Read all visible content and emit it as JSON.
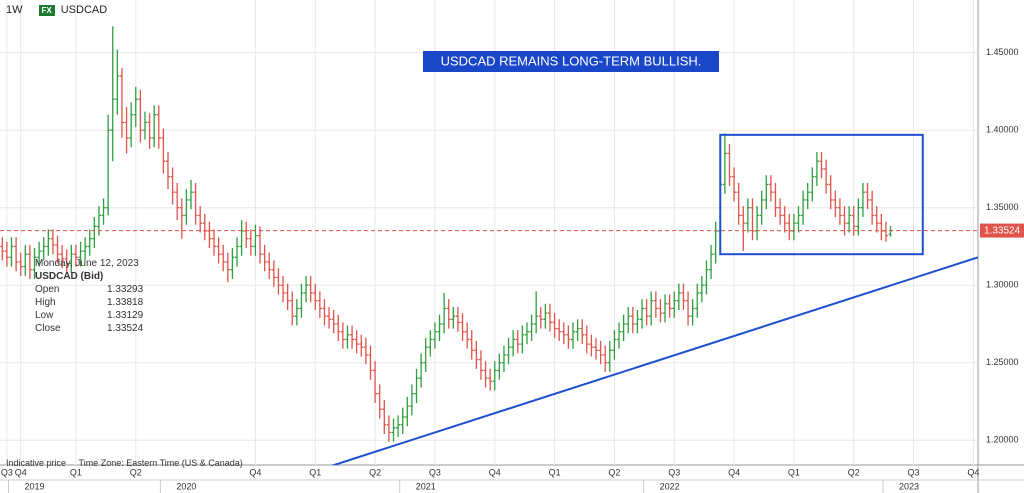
{
  "header": {
    "interval": "1W",
    "badge": "FX",
    "symbol": "USDCAD"
  },
  "footer": {
    "price_type": "Indicative price",
    "time_zone": "Time Zone: Eastern Time (US & Canada)"
  },
  "chart_data": {
    "type": "ohlc",
    "up_color": "#2e9e3e",
    "down_color": "#e0534a",
    "grid": true,
    "xlim": [
      -0.5,
      212
    ],
    "ylim": [
      1.184,
      1.484
    ],
    "yticks": [
      {
        "value": 1.2,
        "label": "1.20000"
      },
      {
        "value": 1.25,
        "label": "1.25000"
      },
      {
        "value": 1.3,
        "label": "1.30000"
      },
      {
        "value": 1.35,
        "label": "1.35000"
      },
      {
        "value": 1.4,
        "label": "1.40000"
      },
      {
        "value": 1.45,
        "label": "1.45000"
      }
    ],
    "xticks": [
      {
        "value": 1,
        "label": "Q3"
      },
      {
        "value": 4,
        "label": "Q4"
      },
      {
        "value": 16,
        "label": "Q1"
      },
      {
        "value": 29,
        "label": "Q2"
      },
      {
        "value": 55,
        "label": "Q4"
      },
      {
        "value": 68,
        "label": "Q1"
      },
      {
        "value": 81,
        "label": "Q2"
      },
      {
        "value": 94,
        "label": "Q3"
      },
      {
        "value": 107,
        "label": "Q4"
      },
      {
        "value": 120,
        "label": "Q1"
      },
      {
        "value": 133,
        "label": "Q2"
      },
      {
        "value": 146,
        "label": "Q3"
      },
      {
        "value": 159,
        "label": "Q4"
      },
      {
        "value": 172,
        "label": "Q1"
      },
      {
        "value": 185,
        "label": "Q2"
      },
      {
        "value": 198,
        "label": "Q3"
      },
      {
        "value": 211,
        "label": "Q4"
      }
    ],
    "year_ticks": [
      {
        "value": 7,
        "label": "2019"
      },
      {
        "value": 40,
        "label": "2020"
      },
      {
        "value": 92,
        "label": "2021"
      },
      {
        "value": 145,
        "label": "2022"
      },
      {
        "value": 197,
        "label": "2023"
      }
    ],
    "annotation": "USDCAD REMAINS LONG-TERM BULLISH.",
    "trendline": {
      "x": [
        70,
        212
      ],
      "y": [
        1.182,
        1.318
      ],
      "color": "#1f4fd1"
    },
    "box": {
      "x": [
        156,
        200
      ],
      "y": [
        1.32,
        1.397
      ],
      "color": "#1f4fd1"
    },
    "last_price": 1.33524,
    "crosshair_info": {
      "date": "Monday, June 12, 2023",
      "series": "USDCAD (Bid)",
      "rows": [
        {
          "label": "Open",
          "value": 1.33293
        },
        {
          "label": "High",
          "value": 1.33818
        },
        {
          "label": "Low",
          "value": 1.33129
        },
        {
          "label": "Close",
          "value": 1.33524
        }
      ]
    },
    "bars": [
      [
        1.325,
        1.331,
        1.316,
        1.322
      ],
      [
        1.322,
        1.328,
        1.312,
        1.318
      ],
      [
        1.318,
        1.331,
        1.312,
        1.325
      ],
      [
        1.325,
        1.331,
        1.309,
        1.315
      ],
      [
        1.315,
        1.321,
        1.306,
        1.312
      ],
      [
        1.312,
        1.326,
        1.306,
        1.32
      ],
      [
        1.32,
        1.326,
        1.304,
        1.31
      ],
      [
        1.31,
        1.324,
        1.304,
        1.318
      ],
      [
        1.318,
        1.328,
        1.312,
        1.322
      ],
      [
        1.322,
        1.331,
        1.316,
        1.325
      ],
      [
        1.325,
        1.336,
        1.319,
        1.33
      ],
      [
        1.33,
        1.336,
        1.32,
        1.326
      ],
      [
        1.326,
        1.332,
        1.314,
        1.32
      ],
      [
        1.32,
        1.326,
        1.311,
        1.317
      ],
      [
        1.317,
        1.323,
        1.308,
        1.314
      ],
      [
        1.314,
        1.326,
        1.308,
        1.32
      ],
      [
        1.32,
        1.326,
        1.312,
        1.318
      ],
      [
        1.318,
        1.328,
        1.312,
        1.322
      ],
      [
        1.322,
        1.331,
        1.316,
        1.325
      ],
      [
        1.325,
        1.336,
        1.319,
        1.33
      ],
      [
        1.33,
        1.344,
        1.324,
        1.338
      ],
      [
        1.338,
        1.351,
        1.332,
        1.345
      ],
      [
        1.345,
        1.356,
        1.339,
        1.35
      ],
      [
        1.35,
        1.41,
        1.345,
        1.4
      ],
      [
        1.4,
        1.467,
        1.38,
        1.42
      ],
      [
        1.42,
        1.452,
        1.41,
        1.435
      ],
      [
        1.435,
        1.44,
        1.395,
        1.405
      ],
      [
        1.405,
        1.415,
        1.385,
        1.395
      ],
      [
        1.395,
        1.418,
        1.389,
        1.41
      ],
      [
        1.41,
        1.428,
        1.402,
        1.42
      ],
      [
        1.42,
        1.426,
        1.392,
        1.4
      ],
      [
        1.4,
        1.412,
        1.394,
        1.405
      ],
      [
        1.405,
        1.411,
        1.388,
        1.395
      ],
      [
        1.395,
        1.416,
        1.389,
        1.41
      ],
      [
        1.41,
        1.416,
        1.388,
        1.395
      ],
      [
        1.395,
        1.401,
        1.372,
        1.38
      ],
      [
        1.38,
        1.386,
        1.362,
        1.37
      ],
      [
        1.37,
        1.376,
        1.352,
        1.36
      ],
      [
        1.36,
        1.366,
        1.342,
        1.35
      ],
      [
        1.35,
        1.356,
        1.33,
        1.345
      ],
      [
        1.345,
        1.362,
        1.339,
        1.355
      ],
      [
        1.355,
        1.368,
        1.349,
        1.36
      ],
      [
        1.36,
        1.366,
        1.339,
        1.345
      ],
      [
        1.345,
        1.351,
        1.334,
        1.34
      ],
      [
        1.34,
        1.346,
        1.329,
        1.335
      ],
      [
        1.335,
        1.341,
        1.324,
        1.33
      ],
      [
        1.33,
        1.336,
        1.319,
        1.325
      ],
      [
        1.325,
        1.331,
        1.314,
        1.32
      ],
      [
        1.32,
        1.326,
        1.309,
        1.315
      ],
      [
        1.315,
        1.321,
        1.302,
        1.31
      ],
      [
        1.31,
        1.324,
        1.304,
        1.318
      ],
      [
        1.318,
        1.331,
        1.312,
        1.325
      ],
      [
        1.325,
        1.342,
        1.319,
        1.335
      ],
      [
        1.335,
        1.341,
        1.324,
        1.33
      ],
      [
        1.33,
        1.336,
        1.319,
        1.325
      ],
      [
        1.325,
        1.339,
        1.319,
        1.332
      ],
      [
        1.332,
        1.338,
        1.314,
        1.32
      ],
      [
        1.32,
        1.326,
        1.309,
        1.315
      ],
      [
        1.315,
        1.321,
        1.304,
        1.31
      ],
      [
        1.31,
        1.316,
        1.299,
        1.305
      ],
      [
        1.305,
        1.311,
        1.294,
        1.3
      ],
      [
        1.3,
        1.306,
        1.289,
        1.295
      ],
      [
        1.295,
        1.301,
        1.284,
        1.29
      ],
      [
        1.29,
        1.296,
        1.274,
        1.28
      ],
      [
        1.28,
        1.291,
        1.274,
        1.285
      ],
      [
        1.285,
        1.301,
        1.279,
        1.295
      ],
      [
        1.295,
        1.306,
        1.289,
        1.3
      ],
      [
        1.3,
        1.306,
        1.289,
        1.295
      ],
      [
        1.295,
        1.301,
        1.284,
        1.29
      ],
      [
        1.29,
        1.296,
        1.279,
        1.285
      ],
      [
        1.285,
        1.291,
        1.274,
        1.28
      ],
      [
        1.28,
        1.286,
        1.272,
        1.278
      ],
      [
        1.278,
        1.284,
        1.269,
        1.275
      ],
      [
        1.275,
        1.281,
        1.264,
        1.27
      ],
      [
        1.27,
        1.276,
        1.259,
        1.265
      ],
      [
        1.265,
        1.274,
        1.259,
        1.268
      ],
      [
        1.268,
        1.274,
        1.259,
        1.265
      ],
      [
        1.265,
        1.271,
        1.256,
        1.262
      ],
      [
        1.262,
        1.268,
        1.254,
        1.26
      ],
      [
        1.26,
        1.266,
        1.249,
        1.255
      ],
      [
        1.255,
        1.261,
        1.239,
        1.245
      ],
      [
        1.245,
        1.251,
        1.224,
        1.23
      ],
      [
        1.23,
        1.236,
        1.214,
        1.22
      ],
      [
        1.22,
        1.226,
        1.204,
        1.21
      ],
      [
        1.21,
        1.216,
        1.199,
        1.205
      ],
      [
        1.205,
        1.214,
        1.199,
        1.208
      ],
      [
        1.208,
        1.216,
        1.202,
        1.21
      ],
      [
        1.21,
        1.221,
        1.204,
        1.215
      ],
      [
        1.215,
        1.228,
        1.209,
        1.222
      ],
      [
        1.222,
        1.236,
        1.216,
        1.23
      ],
      [
        1.23,
        1.246,
        1.224,
        1.24
      ],
      [
        1.24,
        1.256,
        1.234,
        1.25
      ],
      [
        1.25,
        1.266,
        1.244,
        1.26
      ],
      [
        1.26,
        1.271,
        1.254,
        1.265
      ],
      [
        1.265,
        1.276,
        1.259,
        1.27
      ],
      [
        1.27,
        1.281,
        1.264,
        1.275
      ],
      [
        1.275,
        1.295,
        1.269,
        1.285
      ],
      [
        1.285,
        1.291,
        1.272,
        1.278
      ],
      [
        1.278,
        1.286,
        1.272,
        1.28
      ],
      [
        1.28,
        1.286,
        1.27,
        1.276
      ],
      [
        1.276,
        1.282,
        1.264,
        1.27
      ],
      [
        1.27,
        1.276,
        1.259,
        1.265
      ],
      [
        1.265,
        1.271,
        1.252,
        1.258
      ],
      [
        1.258,
        1.264,
        1.246,
        1.252
      ],
      [
        1.252,
        1.258,
        1.239,
        1.245
      ],
      [
        1.245,
        1.251,
        1.234,
        1.24
      ],
      [
        1.24,
        1.246,
        1.232,
        1.238
      ],
      [
        1.238,
        1.251,
        1.232,
        1.245
      ],
      [
        1.245,
        1.256,
        1.239,
        1.25
      ],
      [
        1.25,
        1.261,
        1.244,
        1.255
      ],
      [
        1.255,
        1.266,
        1.249,
        1.26
      ],
      [
        1.26,
        1.271,
        1.254,
        1.265
      ],
      [
        1.265,
        1.271,
        1.256,
        1.262
      ],
      [
        1.262,
        1.274,
        1.256,
        1.268
      ],
      [
        1.268,
        1.276,
        1.262,
        1.27
      ],
      [
        1.27,
        1.281,
        1.264,
        1.275
      ],
      [
        1.275,
        1.296,
        1.269,
        1.28
      ],
      [
        1.28,
        1.286,
        1.272,
        1.278
      ],
      [
        1.278,
        1.288,
        1.272,
        1.282
      ],
      [
        1.282,
        1.288,
        1.27,
        1.276
      ],
      [
        1.276,
        1.282,
        1.266,
        1.272
      ],
      [
        1.272,
        1.278,
        1.264,
        1.27
      ],
      [
        1.27,
        1.276,
        1.262,
        1.268
      ],
      [
        1.268,
        1.274,
        1.259,
        1.265
      ],
      [
        1.265,
        1.276,
        1.259,
        1.27
      ],
      [
        1.27,
        1.278,
        1.264,
        1.272
      ],
      [
        1.272,
        1.278,
        1.262,
        1.268
      ],
      [
        1.268,
        1.274,
        1.256,
        1.262
      ],
      [
        1.262,
        1.268,
        1.254,
        1.26
      ],
      [
        1.26,
        1.266,
        1.252,
        1.258
      ],
      [
        1.258,
        1.264,
        1.249,
        1.255
      ],
      [
        1.255,
        1.261,
        1.244,
        1.25
      ],
      [
        1.25,
        1.264,
        1.244,
        1.258
      ],
      [
        1.258,
        1.271,
        1.252,
        1.265
      ],
      [
        1.265,
        1.276,
        1.259,
        1.27
      ],
      [
        1.27,
        1.281,
        1.264,
        1.275
      ],
      [
        1.275,
        1.286,
        1.269,
        1.28
      ],
      [
        1.28,
        1.286,
        1.269,
        1.275
      ],
      [
        1.275,
        1.284,
        1.269,
        1.278
      ],
      [
        1.278,
        1.291,
        1.272,
        1.285
      ],
      [
        1.285,
        1.291,
        1.274,
        1.28
      ],
      [
        1.28,
        1.296,
        1.274,
        1.29
      ],
      [
        1.29,
        1.296,
        1.279,
        1.285
      ],
      [
        1.285,
        1.291,
        1.276,
        1.282
      ],
      [
        1.282,
        1.294,
        1.276,
        1.288
      ],
      [
        1.288,
        1.294,
        1.279,
        1.285
      ],
      [
        1.285,
        1.296,
        1.279,
        1.29
      ],
      [
        1.29,
        1.301,
        1.284,
        1.295
      ],
      [
        1.295,
        1.301,
        1.284,
        1.29
      ],
      [
        1.29,
        1.296,
        1.274,
        1.28
      ],
      [
        1.28,
        1.291,
        1.274,
        1.285
      ],
      [
        1.285,
        1.301,
        1.279,
        1.295
      ],
      [
        1.295,
        1.306,
        1.289,
        1.3
      ],
      [
        1.3,
        1.316,
        1.294,
        1.31
      ],
      [
        1.31,
        1.326,
        1.304,
        1.32
      ],
      [
        1.32,
        1.341,
        1.314,
        1.335
      ],
      [
        1.335,
        1.38,
        1.329,
        1.365
      ],
      [
        1.365,
        1.398,
        1.359,
        1.385
      ],
      [
        1.385,
        1.391,
        1.364,
        1.37
      ],
      [
        1.37,
        1.376,
        1.354,
        1.36
      ],
      [
        1.36,
        1.366,
        1.339,
        1.345
      ],
      [
        1.345,
        1.351,
        1.322,
        1.34
      ],
      [
        1.34,
        1.356,
        1.334,
        1.35
      ],
      [
        1.35,
        1.356,
        1.329,
        1.335
      ],
      [
        1.335,
        1.351,
        1.329,
        1.345
      ],
      [
        1.345,
        1.361,
        1.339,
        1.355
      ],
      [
        1.355,
        1.371,
        1.349,
        1.365
      ],
      [
        1.365,
        1.371,
        1.354,
        1.36
      ],
      [
        1.36,
        1.366,
        1.344,
        1.35
      ],
      [
        1.35,
        1.356,
        1.339,
        1.345
      ],
      [
        1.345,
        1.351,
        1.334,
        1.34
      ],
      [
        1.34,
        1.346,
        1.329,
        1.335
      ],
      [
        1.335,
        1.346,
        1.329,
        1.34
      ],
      [
        1.34,
        1.351,
        1.334,
        1.345
      ],
      [
        1.345,
        1.361,
        1.339,
        1.355
      ],
      [
        1.355,
        1.366,
        1.349,
        1.36
      ],
      [
        1.36,
        1.376,
        1.354,
        1.37
      ],
      [
        1.37,
        1.386,
        1.364,
        1.38
      ],
      [
        1.38,
        1.386,
        1.369,
        1.375
      ],
      [
        1.375,
        1.381,
        1.359,
        1.365
      ],
      [
        1.365,
        1.371,
        1.349,
        1.355
      ],
      [
        1.355,
        1.361,
        1.344,
        1.35
      ],
      [
        1.35,
        1.356,
        1.339,
        1.345
      ],
      [
        1.345,
        1.351,
        1.332,
        1.34
      ],
      [
        1.34,
        1.351,
        1.334,
        1.345
      ],
      [
        1.345,
        1.351,
        1.332,
        1.338
      ],
      [
        1.338,
        1.356,
        1.332,
        1.35
      ],
      [
        1.35,
        1.366,
        1.344,
        1.36
      ],
      [
        1.36,
        1.366,
        1.349,
        1.355
      ],
      [
        1.355,
        1.361,
        1.339,
        1.345
      ],
      [
        1.345,
        1.351,
        1.334,
        1.34
      ],
      [
        1.34,
        1.346,
        1.329,
        1.335
      ],
      [
        1.335,
        1.341,
        1.328,
        1.332
      ],
      [
        1.33293,
        1.33818,
        1.33129,
        1.33524
      ]
    ]
  }
}
